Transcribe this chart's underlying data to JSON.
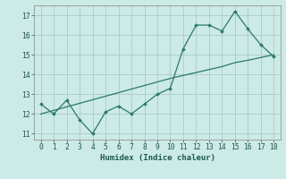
{
  "x": [
    0,
    1,
    2,
    3,
    4,
    5,
    6,
    7,
    8,
    9,
    10,
    11,
    12,
    13,
    14,
    15,
    16,
    17,
    18
  ],
  "y_main": [
    12.5,
    12.0,
    12.7,
    11.7,
    11.0,
    12.1,
    12.4,
    12.0,
    12.5,
    13.0,
    13.3,
    15.3,
    16.5,
    16.5,
    16.2,
    17.2,
    16.3,
    15.5,
    14.9
  ],
  "y_trend": [
    12.0,
    12.18,
    12.36,
    12.54,
    12.72,
    12.9,
    13.08,
    13.26,
    13.44,
    13.62,
    13.8,
    13.95,
    14.1,
    14.25,
    14.4,
    14.6,
    14.72,
    14.86,
    15.0
  ],
  "line_color": "#2a7a6a",
  "bg_color": "#cceae6",
  "grid_color": "#b0cece",
  "xlabel": "Humidex (Indice chaleur)",
  "ylim": [
    10.7,
    17.5
  ],
  "xlim": [
    -0.5,
    18.5
  ],
  "yticks": [
    11,
    12,
    13,
    14,
    15,
    16,
    17
  ],
  "xticks": [
    0,
    1,
    2,
    3,
    4,
    5,
    6,
    7,
    8,
    9,
    10,
    11,
    12,
    13,
    14,
    15,
    16,
    17,
    18
  ]
}
